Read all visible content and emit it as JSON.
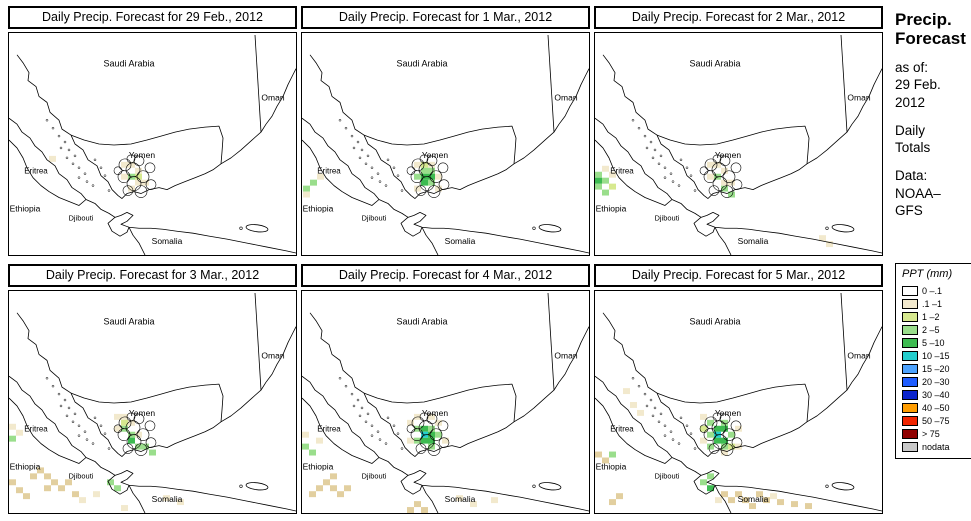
{
  "sidebar": {
    "title_lines": [
      "Precip.",
      "Forecast"
    ],
    "as_of": [
      "as of:",
      "29 Feb.",
      "2012"
    ],
    "totals": [
      "Daily",
      "Totals"
    ],
    "source": [
      "Data:",
      "NOAA–",
      "GFS"
    ]
  },
  "map_labels": {
    "saudi_arabia": "Saudi Arabia",
    "oman": "Oman",
    "yemen": "Yemen",
    "eritrea": "Eritrea",
    "ethiopia": "Ethiopia",
    "djibouti": "Djibouti",
    "somalia": "Somalia"
  },
  "palette": {
    "c": "#f2e9cd",
    "t": "#e2cf9f",
    "y": "#d7e98f",
    "g1": "#9ade8c",
    "g2": "#3dbb51",
    "cy": "#23cfcf"
  },
  "panels": [
    {
      "title": "Daily Precip. Forecast for  29 Feb., 2012",
      "patches": [
        [
          112,
          130,
          "c"
        ],
        [
          119,
          130,
          "c"
        ],
        [
          126,
          136,
          "c"
        ],
        [
          112,
          142,
          "c"
        ],
        [
          126,
          148,
          "c"
        ],
        [
          119,
          154,
          "c"
        ],
        [
          119,
          142,
          "g1"
        ],
        [
          126,
          142,
          "y"
        ],
        [
          40,
          124,
          "c"
        ],
        [
          133,
          148,
          "c"
        ]
      ]
    },
    {
      "title": "Daily Precip. Forecast for  1 Mar., 2012",
      "patches": [
        [
          112,
          130,
          "c"
        ],
        [
          126,
          130,
          "c"
        ],
        [
          133,
          142,
          "c"
        ],
        [
          112,
          154,
          "c"
        ],
        [
          133,
          154,
          "c"
        ],
        [
          119,
          130,
          "y"
        ],
        [
          119,
          136,
          "g1"
        ],
        [
          126,
          136,
          "g1"
        ],
        [
          112,
          142,
          "g1"
        ],
        [
          126,
          148,
          "g1"
        ],
        [
          119,
          142,
          "g2"
        ],
        [
          126,
          142,
          "g2"
        ],
        [
          119,
          148,
          "g2"
        ],
        [
          8,
          148,
          "g1"
        ],
        [
          1,
          154,
          "g1"
        ],
        [
          15,
          142,
          "c"
        ],
        [
          1,
          160,
          "c"
        ]
      ]
    },
    {
      "title": "Daily Precip. Forecast for  2 Mar., 2012",
      "patches": [
        [
          0,
          140,
          "g1"
        ],
        [
          7,
          146,
          "g1"
        ],
        [
          0,
          152,
          "g1"
        ],
        [
          7,
          158,
          "g1"
        ],
        [
          0,
          146,
          "g2"
        ],
        [
          14,
          152,
          "y"
        ],
        [
          14,
          140,
          "c"
        ],
        [
          7,
          134,
          "c"
        ],
        [
          112,
          130,
          "c"
        ],
        [
          119,
          130,
          "c"
        ],
        [
          126,
          136,
          "c"
        ],
        [
          112,
          142,
          "c"
        ],
        [
          133,
          148,
          "c"
        ],
        [
          119,
          142,
          "g1"
        ],
        [
          126,
          154,
          "g1"
        ],
        [
          133,
          160,
          "g1"
        ],
        [
          126,
          148,
          "c"
        ],
        [
          224,
          204,
          "c"
        ],
        [
          231,
          210,
          "c"
        ]
      ]
    },
    {
      "title": "Daily Precip. Forecast for  3 Mar., 2012",
      "patches": [
        [
          105,
          124,
          "c"
        ],
        [
          112,
          124,
          "c"
        ],
        [
          119,
          130,
          "c"
        ],
        [
          105,
          136,
          "c"
        ],
        [
          126,
          142,
          "c"
        ],
        [
          112,
          130,
          "y"
        ],
        [
          112,
          136,
          "g1"
        ],
        [
          119,
          142,
          "g1"
        ],
        [
          126,
          154,
          "g1"
        ],
        [
          140,
          160,
          "g1"
        ],
        [
          119,
          148,
          "g2"
        ],
        [
          133,
          154,
          "g1"
        ],
        [
          0,
          134,
          "c"
        ],
        [
          7,
          140,
          "c"
        ],
        [
          0,
          146,
          "g1"
        ],
        [
          28,
          178,
          "t"
        ],
        [
          35,
          184,
          "t"
        ],
        [
          21,
          184,
          "t"
        ],
        [
          42,
          190,
          "t"
        ],
        [
          49,
          196,
          "t"
        ],
        [
          35,
          196,
          "t"
        ],
        [
          56,
          190,
          "t"
        ],
        [
          63,
          202,
          "t"
        ],
        [
          14,
          204,
          "t"
        ],
        [
          7,
          198,
          "t"
        ],
        [
          0,
          190,
          "t"
        ],
        [
          98,
          190,
          "g1"
        ],
        [
          105,
          196,
          "g1"
        ],
        [
          70,
          208,
          "c"
        ],
        [
          84,
          202,
          "c"
        ],
        [
          154,
          206,
          "c"
        ],
        [
          168,
          210,
          "c"
        ],
        [
          112,
          216,
          "c"
        ]
      ]
    },
    {
      "title": "Daily Precip. Forecast for  4 Mar., 2012",
      "patches": [
        [
          105,
          130,
          "c"
        ],
        [
          112,
          124,
          "c"
        ],
        [
          126,
          124,
          "c"
        ],
        [
          133,
          130,
          "c"
        ],
        [
          140,
          148,
          "c"
        ],
        [
          105,
          148,
          "c"
        ],
        [
          112,
          136,
          "g1"
        ],
        [
          126,
          136,
          "g1"
        ],
        [
          112,
          148,
          "g1"
        ],
        [
          126,
          154,
          "g1"
        ],
        [
          133,
          142,
          "g1"
        ],
        [
          119,
          136,
          "g2"
        ],
        [
          119,
          148,
          "g2"
        ],
        [
          126,
          148,
          "g2"
        ],
        [
          119,
          142,
          "cy"
        ],
        [
          126,
          142,
          "g2"
        ],
        [
          0,
          142,
          "c"
        ],
        [
          14,
          148,
          "c"
        ],
        [
          0,
          154,
          "g1"
        ],
        [
          7,
          160,
          "g1"
        ],
        [
          21,
          190,
          "t"
        ],
        [
          28,
          196,
          "t"
        ],
        [
          14,
          196,
          "t"
        ],
        [
          35,
          202,
          "t"
        ],
        [
          42,
          196,
          "t"
        ],
        [
          28,
          184,
          "t"
        ],
        [
          7,
          202,
          "t"
        ],
        [
          105,
          218,
          "t"
        ],
        [
          112,
          212,
          "t"
        ],
        [
          119,
          218,
          "t"
        ],
        [
          154,
          206,
          "c"
        ],
        [
          168,
          212,
          "c"
        ],
        [
          189,
          208,
          "c"
        ]
      ]
    },
    {
      "title": "Daily Precip. Forecast for  5 Mar., 2012",
      "patches": [
        [
          105,
          124,
          "c"
        ],
        [
          140,
          136,
          "c"
        ],
        [
          140,
          154,
          "c"
        ],
        [
          105,
          148,
          "c"
        ],
        [
          126,
          160,
          "c"
        ],
        [
          112,
          130,
          "g1"
        ],
        [
          126,
          130,
          "g1"
        ],
        [
          112,
          142,
          "g1"
        ],
        [
          133,
          142,
          "g1"
        ],
        [
          126,
          154,
          "g1"
        ],
        [
          112,
          154,
          "g1"
        ],
        [
          119,
          136,
          "g2"
        ],
        [
          126,
          136,
          "g2"
        ],
        [
          119,
          148,
          "g2"
        ],
        [
          126,
          148,
          "g2"
        ],
        [
          119,
          142,
          "cy"
        ],
        [
          133,
          154,
          "y"
        ],
        [
          105,
          136,
          "y"
        ],
        [
          35,
          112,
          "c"
        ],
        [
          42,
          120,
          "c"
        ],
        [
          0,
          162,
          "t"
        ],
        [
          7,
          168,
          "t"
        ],
        [
          14,
          162,
          "g1"
        ],
        [
          105,
          190,
          "g1"
        ],
        [
          112,
          184,
          "g1"
        ],
        [
          112,
          196,
          "g2"
        ],
        [
          126,
          202,
          "t"
        ],
        [
          133,
          208,
          "t"
        ],
        [
          140,
          202,
          "t"
        ],
        [
          147,
          208,
          "t"
        ],
        [
          154,
          214,
          "t"
        ],
        [
          161,
          202,
          "t"
        ],
        [
          168,
          208,
          "t"
        ],
        [
          182,
          210,
          "t"
        ],
        [
          196,
          212,
          "t"
        ],
        [
          210,
          214,
          "t"
        ],
        [
          120,
          208,
          "c"
        ],
        [
          175,
          204,
          "c"
        ],
        [
          21,
          204,
          "t"
        ],
        [
          14,
          210,
          "t"
        ],
        [
          28,
          98,
          "c"
        ]
      ]
    }
  ],
  "legend": {
    "title": "PPT (mm)",
    "entries": [
      {
        "label": "0 –.1",
        "color": "#ffffff"
      },
      {
        "label": ".1 –1",
        "color": "#f2e9cd"
      },
      {
        "label": "1 –2",
        "color": "#d7e98f"
      },
      {
        "label": "2 –5",
        "color": "#9ade8c"
      },
      {
        "label": "5 –10",
        "color": "#3dbb51"
      },
      {
        "label": "10 –15",
        "color": "#23cfcf"
      },
      {
        "label": "15 –20",
        "color": "#4da3ff"
      },
      {
        "label": "20 –30",
        "color": "#1f5dff"
      },
      {
        "label": "30 –40",
        "color": "#0a23cc"
      },
      {
        "label": "40 –50",
        "color": "#ff9d00"
      },
      {
        "label": "50 –75",
        "color": "#f02500"
      },
      {
        "label": "> 75",
        "color": "#8f0000"
      },
      {
        "label": "nodata",
        "color": "#c8c8c8"
      }
    ]
  }
}
